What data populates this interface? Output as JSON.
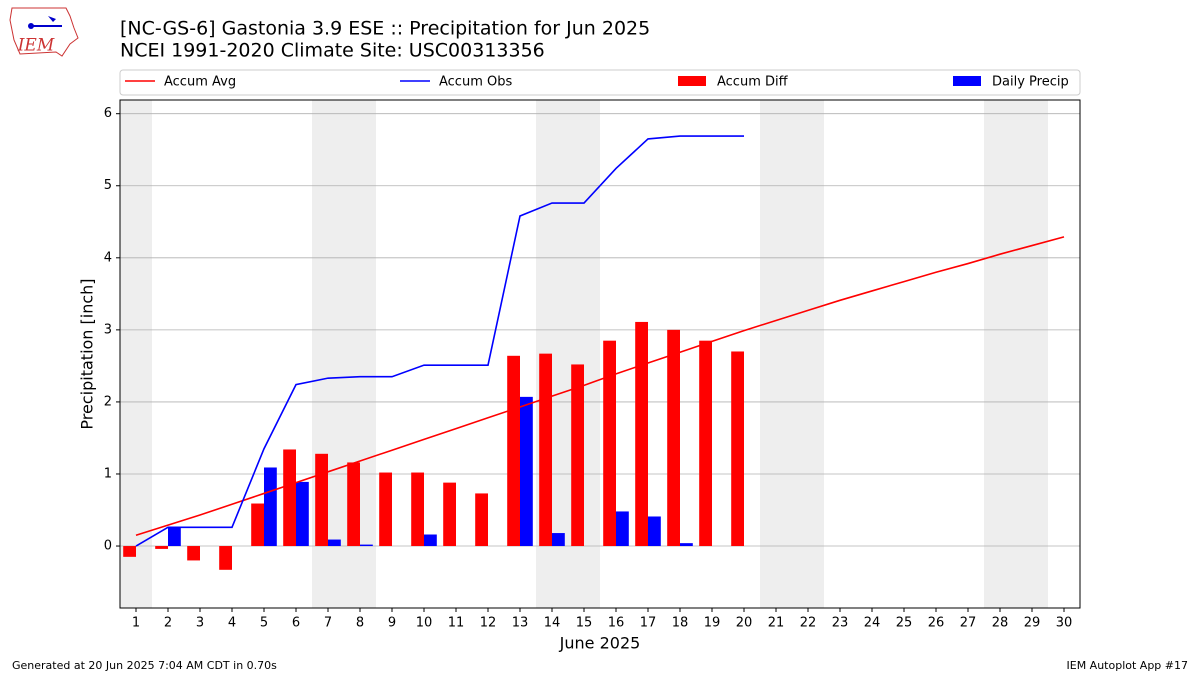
{
  "logo_text": "IEM",
  "chart_data": {
    "type": "bar_line",
    "title": "[NC-GS-6] Gastonia 3.9 ESE :: Precipitation for Jun 2025",
    "subtitle": "NCEI 1991-2020 Climate Site: USC00313356",
    "x_label": "June 2025",
    "y_label": "Precipitation [inch]",
    "x": [
      1,
      2,
      3,
      4,
      5,
      6,
      7,
      8,
      9,
      10,
      11,
      12,
      13,
      14,
      15,
      16,
      17,
      18,
      19,
      20,
      21,
      22,
      23,
      24,
      25,
      26,
      27,
      28,
      29,
      30
    ],
    "xlim": [
      0.5,
      30.5
    ],
    "xticks": [
      1,
      2,
      3,
      4,
      5,
      6,
      7,
      8,
      9,
      10,
      11,
      12,
      13,
      14,
      15,
      16,
      17,
      18,
      19,
      20,
      21,
      22,
      23,
      24,
      25,
      26,
      27,
      28,
      29,
      30
    ],
    "ylim": [
      -0.86,
      6.19
    ],
    "yticks": [
      0,
      1,
      2,
      3,
      4,
      5,
      6
    ],
    "grid": true,
    "shaded_ranges": [
      [
        0.5,
        1.5
      ],
      [
        6.5,
        8.5
      ],
      [
        13.5,
        15.5
      ],
      [
        20.5,
        22.5
      ],
      [
        27.5,
        29.5
      ]
    ],
    "shade_color": "#eeeeee",
    "series": [
      {
        "name": "Accum Avg",
        "kind": "line",
        "color": "#ff0000",
        "values": [
          0.15,
          0.29,
          0.43,
          0.58,
          0.73,
          0.88,
          1.03,
          1.18,
          1.33,
          1.48,
          1.63,
          1.78,
          1.93,
          2.08,
          2.23,
          2.39,
          2.54,
          2.69,
          2.84,
          2.99,
          3.13,
          3.27,
          3.41,
          3.54,
          3.67,
          3.8,
          3.92,
          4.05,
          4.17,
          4.29
        ]
      },
      {
        "name": "Accum Obs",
        "kind": "line",
        "color": "#0000ff",
        "values": [
          0,
          0.26,
          0.26,
          0.26,
          1.35,
          2.24,
          2.33,
          2.35,
          2.35,
          2.51,
          2.51,
          2.51,
          4.58,
          4.76,
          4.76,
          5.24,
          5.65,
          5.69,
          5.69,
          5.69,
          null,
          null,
          null,
          null,
          null,
          null,
          null,
          null,
          null,
          null
        ]
      },
      {
        "name": "Accum Diff",
        "kind": "bar",
        "color": "#ff0000",
        "offset": -0.4,
        "values": [
          -0.15,
          -0.04,
          -0.2,
          -0.33,
          0.59,
          1.34,
          1.28,
          1.16,
          1.02,
          1.02,
          0.88,
          0.73,
          2.64,
          2.67,
          2.52,
          2.85,
          3.11,
          3.0,
          2.85,
          2.7,
          null,
          null,
          null,
          null,
          null,
          null,
          null,
          null,
          null,
          null
        ]
      },
      {
        "name": "Daily Precip",
        "kind": "bar",
        "color": "#0000ff",
        "offset": 0,
        "values": [
          0,
          0.26,
          0,
          0,
          1.09,
          0.89,
          0.09,
          0.02,
          0,
          0.16,
          0,
          0,
          2.07,
          0.18,
          0,
          0.48,
          0.41,
          0.04,
          0,
          0,
          null,
          null,
          null,
          null,
          null,
          null,
          null,
          null,
          null,
          null
        ]
      }
    ],
    "footer_left": "Generated at 20 Jun 2025 7:04 AM CDT in 0.70s",
    "footer_right": "IEM Autoplot App #17"
  }
}
